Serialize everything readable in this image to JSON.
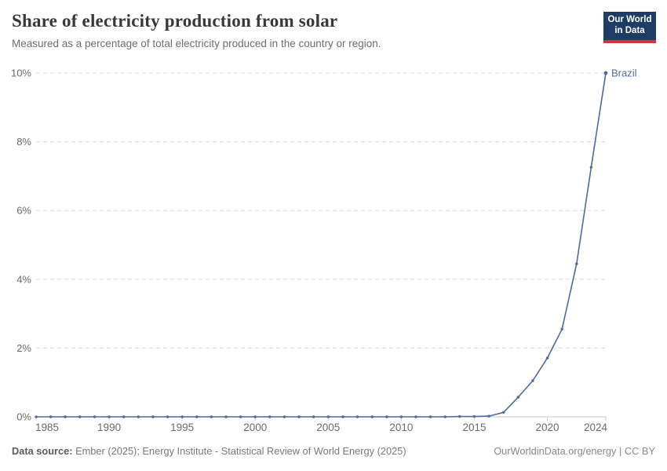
{
  "header": {
    "title": "Share of electricity production from solar",
    "subtitle": "Measured as a percentage of total electricity produced in the country or region.",
    "logo_line1": "Our World",
    "logo_line2": "in Data"
  },
  "chart_data": {
    "type": "line",
    "title": "Share of electricity production from solar",
    "entity": "Brazil",
    "end_label": "Brazil",
    "x": [
      1985,
      1986,
      1987,
      1988,
      1989,
      1990,
      1991,
      1992,
      1993,
      1994,
      1995,
      1996,
      1997,
      1998,
      1999,
      2000,
      2001,
      2002,
      2003,
      2004,
      2005,
      2006,
      2007,
      2008,
      2009,
      2010,
      2011,
      2012,
      2013,
      2014,
      2015,
      2016,
      2017,
      2018,
      2019,
      2020,
      2021,
      2022,
      2023,
      2024
    ],
    "series": [
      {
        "name": "Brazil",
        "values": [
          0,
          0,
          0,
          0,
          0,
          0,
          0,
          0,
          0,
          0,
          0,
          0,
          0,
          0,
          0,
          0,
          0,
          0,
          0,
          0,
          0,
          0,
          0,
          0,
          0,
          0,
          0,
          0,
          0,
          0.01,
          0.01,
          0.02,
          0.13,
          0.57,
          1.05,
          1.71,
          2.55,
          4.45,
          7.26,
          10.0
        ]
      }
    ],
    "xlabel": "",
    "ylabel": "",
    "xlim": [
      1985,
      2024
    ],
    "ylim": [
      0,
      10
    ],
    "xticks": [
      1985,
      1990,
      1995,
      2000,
      2005,
      2010,
      2015,
      2020,
      2024
    ],
    "yticks": [
      0,
      2,
      4,
      6,
      8,
      10
    ],
    "ytick_labels": [
      "0%",
      "2%",
      "4%",
      "6%",
      "8%",
      "10%"
    ],
    "grid": "horizontal-dashed",
    "legend_position": "end-of-line",
    "colors": {
      "line": "#4c6a9c",
      "grid": "#dedede",
      "axis": "#c9c9c9",
      "tick": "#c9c9c9",
      "axis_text": "#6a6a6a"
    }
  },
  "footer": {
    "source_label": "Data source:",
    "source_text": " Ember (2025); Energy Institute - Statistical Review of World Energy (2025)",
    "credit": "OurWorldinData.org/energy | CC BY"
  }
}
